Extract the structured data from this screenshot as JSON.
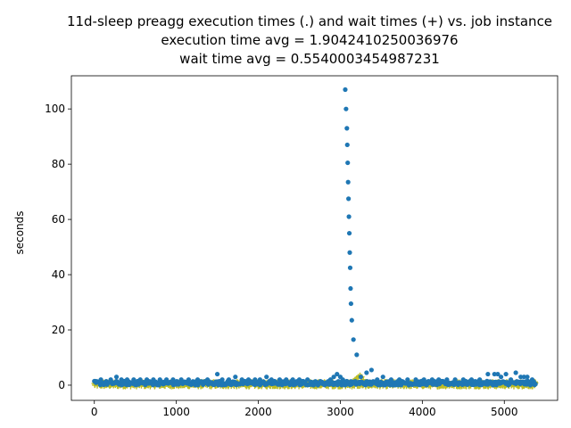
{
  "chart_data": {
    "type": "scatter",
    "title_lines": [
      "11d-sleep preagg execution times (.) and wait times (+) vs. job instance",
      "execution time avg = 1.9042410250036976",
      "wait time avg = 0.5540003454987231"
    ],
    "xlabel": "",
    "ylabel": "seconds",
    "xlim": [
      -280,
      5650
    ],
    "ylim": [
      -5.5,
      112
    ],
    "xticks": [
      0,
      1000,
      2000,
      3000,
      4000,
      5000
    ],
    "yticks": [
      0,
      20,
      40,
      60,
      80,
      100
    ],
    "grid": false,
    "series": [
      {
        "marker": "dot",
        "color": "#1f77b4",
        "peak": {
          "x": [
            2880,
            2920,
            2960,
            3000,
            3030,
            3050,
            3060,
            3070,
            3080,
            3085,
            3090,
            3095,
            3100,
            3105,
            3110,
            3115,
            3120,
            3125,
            3130,
            3140,
            3160,
            3200,
            3250
          ],
          "y": [
            2,
            3,
            4,
            3,
            2,
            1,
            107,
            100,
            93,
            87,
            80.5,
            73.5,
            67.5,
            61,
            55,
            48,
            42.5,
            35,
            29.5,
            23.5,
            16.5,
            11,
            3
          ]
        },
        "spikes": {
          "x": [
            80,
            200,
            270,
            330,
            400,
            480,
            560,
            640,
            720,
            800,
            880,
            960,
            1060,
            1150,
            1260,
            1380,
            1500,
            1560,
            1640,
            1720,
            1800,
            1880,
            1960,
            2020,
            2100,
            2160,
            2260,
            2340,
            2420,
            2500,
            2600,
            3320,
            3380,
            3450,
            3520,
            3620,
            3720,
            3820,
            3920,
            4020,
            4120,
            4200,
            4300,
            4400,
            4500,
            4600,
            4700,
            4800,
            4880,
            4920,
            4960,
            5020,
            5080,
            5140,
            5200,
            5240,
            5280,
            5340
          ],
          "y": [
            2,
            2,
            3,
            2,
            2,
            2,
            2,
            2,
            2,
            2,
            2,
            2,
            2,
            2,
            2,
            2,
            4,
            2,
            2,
            3,
            2,
            2,
            2,
            2,
            3,
            2,
            2,
            2,
            2,
            2,
            2,
            4.5,
            5.5,
            2,
            3,
            2,
            2,
            2,
            2,
            2,
            2,
            2,
            2,
            2,
            2,
            2,
            2,
            4,
            4,
            4,
            3,
            4,
            2,
            4.5,
            3,
            3,
            3,
            2
          ]
        },
        "band": {
          "x_range": [
            0,
            5380
          ],
          "count": 520,
          "y_range": [
            0,
            1.5
          ]
        }
      },
      {
        "marker": "plus",
        "color": "#bcbd22",
        "bump": {
          "x": [
            3140,
            3160,
            3180,
            3200,
            3220,
            3240,
            3260,
            3280,
            3300
          ],
          "y": [
            1,
            1.5,
            2,
            2.5,
            3,
            3.5,
            3,
            2,
            1
          ]
        },
        "band": {
          "x_range": [
            0,
            5380
          ],
          "count": 900,
          "y_range": [
            -0.5,
            1.2
          ]
        }
      }
    ]
  }
}
